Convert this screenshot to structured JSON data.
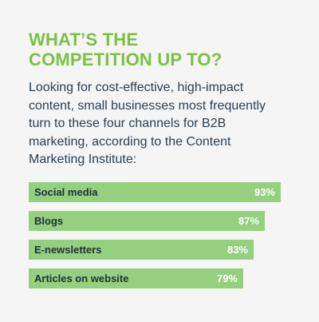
{
  "heading": {
    "lines": [
      "WHAT’S THE",
      "COMPETITION UP TO?"
    ]
  },
  "intro": {
    "lines": [
      "Looking for cost-effective, high-impact",
      "content, small businesses most frequently",
      "turn to these four channels for B2B",
      "marketing, according to the Content",
      "Marketing Institute:"
    ]
  },
  "colors": {
    "accent": "#7ac142",
    "bar": "#95d07e",
    "text": "#2c3e4f",
    "value_text": "#ffffff",
    "background": "#f5f5f5"
  },
  "chart_data": {
    "type": "bar",
    "orientation": "horizontal",
    "categories": [
      "Social media",
      "Blogs",
      "E-newsletters",
      "Articles on website"
    ],
    "values": [
      93,
      87,
      83,
      79
    ],
    "value_labels": [
      "93%",
      "87%",
      "83%",
      "79%"
    ],
    "xlim": [
      0,
      100
    ],
    "grid": false
  }
}
